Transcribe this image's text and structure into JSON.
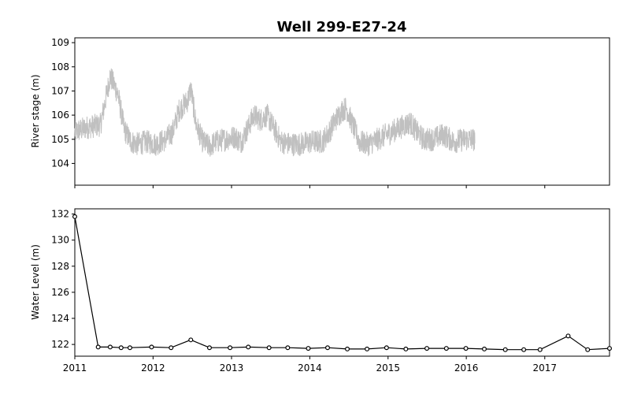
{
  "chart_data": [
    {
      "type": "line",
      "title": "Well 299-E27-24",
      "xlabel": "",
      "ylabel": "River stage (m)",
      "ylim": [
        103.1,
        109.2
      ],
      "yticks": [
        104,
        105,
        106,
        107,
        108,
        109
      ],
      "xlim": [
        "2011-01-01",
        "2017-10-30"
      ],
      "x_tick_labels_shown": false,
      "grid": false,
      "legend": "none",
      "series": [
        {
          "color": "#c0c0c0",
          "style": "noisy daily record, approximately ±0.5 m daily fluctuation",
          "x": [
            "2011-01-01",
            "2011-03-01",
            "2011-05-01",
            "2011-06-15",
            "2011-07-01",
            "2011-07-20",
            "2011-08-20",
            "2011-09-20",
            "2011-10-20",
            "2011-12-01",
            "2012-01-15",
            "2012-03-01",
            "2012-04-01",
            "2012-05-01",
            "2012-06-10",
            "2012-06-25",
            "2012-07-20",
            "2012-08-20",
            "2012-09-20",
            "2012-10-20",
            "2012-12-01",
            "2013-01-15",
            "2013-02-15",
            "2013-03-20",
            "2013-04-15",
            "2013-05-15",
            "2013-06-15",
            "2013-07-15",
            "2013-08-20",
            "2013-10-01",
            "2013-11-15",
            "2014-01-15",
            "2014-03-01",
            "2014-04-01",
            "2014-05-01",
            "2014-06-01",
            "2014-06-20",
            "2014-07-20",
            "2014-08-20",
            "2014-10-01",
            "2014-11-15",
            "2015-01-15",
            "2015-03-01",
            "2015-04-15",
            "2015-05-15",
            "2015-06-15",
            "2015-08-01",
            "2015-09-15",
            "2015-11-01",
            "2016-01-01",
            "2016-02-10"
          ],
          "y": [
            105.3,
            105.5,
            105.6,
            107.6,
            107.3,
            106.9,
            105.4,
            104.9,
            104.8,
            104.9,
            104.8,
            105.0,
            105.3,
            106.2,
            106.6,
            107.1,
            105.6,
            104.9,
            104.7,
            104.9,
            105.0,
            105.1,
            104.9,
            105.5,
            106.0,
            105.8,
            106.0,
            105.5,
            104.9,
            104.8,
            104.8,
            104.9,
            104.9,
            105.3,
            105.8,
            106.2,
            106.3,
            105.6,
            104.9,
            104.8,
            105.0,
            105.3,
            105.5,
            105.7,
            105.3,
            105.0,
            105.0,
            105.2,
            104.9,
            105.0,
            105.0
          ]
        }
      ]
    },
    {
      "type": "line",
      "title": "",
      "xlabel": "",
      "ylabel": "Water Level (m)",
      "ylim": [
        121.1,
        132.4
      ],
      "yticks": [
        122,
        124,
        126,
        128,
        130,
        132
      ],
      "xlim": [
        "2011-01-01",
        "2017-10-30"
      ],
      "xticks": [
        "2011",
        "2012",
        "2013",
        "2014",
        "2015",
        "2016",
        "2017"
      ],
      "grid": false,
      "legend": "none",
      "series": [
        {
          "color": "#000000",
          "marker": "circle",
          "x": [
            "2011-01-01",
            "2011-04-20",
            "2011-06-15",
            "2011-08-05",
            "2011-09-15",
            "2011-12-25",
            "2012-03-25",
            "2012-06-25",
            "2012-09-20",
            "2012-12-25",
            "2013-03-20",
            "2013-06-25",
            "2013-09-20",
            "2013-12-25",
            "2014-03-25",
            "2014-06-25",
            "2014-09-25",
            "2014-12-25",
            "2015-03-25",
            "2015-07-01",
            "2015-09-30",
            "2015-12-30",
            "2016-03-25",
            "2016-07-01",
            "2016-09-25",
            "2016-12-10",
            "2017-04-20",
            "2017-07-20",
            "2017-10-30"
          ],
          "y": [
            131.8,
            121.8,
            121.8,
            121.75,
            121.75,
            121.8,
            121.75,
            122.35,
            121.75,
            121.75,
            121.8,
            121.75,
            121.75,
            121.7,
            121.75,
            121.65,
            121.65,
            121.75,
            121.65,
            121.7,
            121.7,
            121.7,
            121.65,
            121.6,
            121.6,
            121.6,
            122.65,
            121.6,
            121.7
          ]
        }
      ]
    }
  ]
}
